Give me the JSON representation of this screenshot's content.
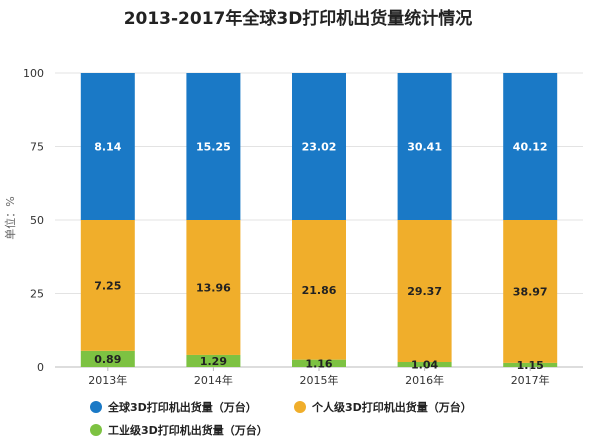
{
  "chart_data": {
    "type": "bar",
    "stacked": "percent",
    "title": "2013-2017年全球3D打印机出货量统计情况",
    "ylabel": "单位：%",
    "xlabel": "",
    "ylim": [
      0,
      100
    ],
    "yticks": [
      0,
      25,
      50,
      75,
      100
    ],
    "categories": [
      "2013年",
      "2014年",
      "2015年",
      "2016年",
      "2017年"
    ],
    "series": [
      {
        "name": "工业级3D打印机出货量（万台）",
        "color": "#7dc242",
        "values": [
          0.89,
          1.29,
          1.16,
          1.04,
          1.15
        ],
        "label_style": "dark"
      },
      {
        "name": "个人级3D打印机出货量（万台）",
        "color": "#f0ae2b",
        "values": [
          7.25,
          13.96,
          21.86,
          29.37,
          38.97
        ],
        "label_style": "dark"
      },
      {
        "name": "全球3D打印机出货量（万台）",
        "color": "#1a79c6",
        "values": [
          8.14,
          15.25,
          23.02,
          30.41,
          40.12
        ],
        "label_style": "light"
      }
    ],
    "segment_shares_pct": [
      [
        5.5,
        44.5,
        50.0
      ],
      [
        4.1,
        45.9,
        50.0
      ],
      [
        2.5,
        47.5,
        50.0
      ],
      [
        1.7,
        48.3,
        50.0
      ],
      [
        1.4,
        48.6,
        50.0
      ]
    ],
    "legend": {
      "position": "bottom",
      "rows": [
        [
          "全球3D打印机出货量（万台）",
          "个人级3D打印机出货量（万台）"
        ],
        [
          "工业级3D打印机出货量（万台）"
        ]
      ]
    },
    "grid": {
      "horizontal": true,
      "vertical": false
    }
  }
}
